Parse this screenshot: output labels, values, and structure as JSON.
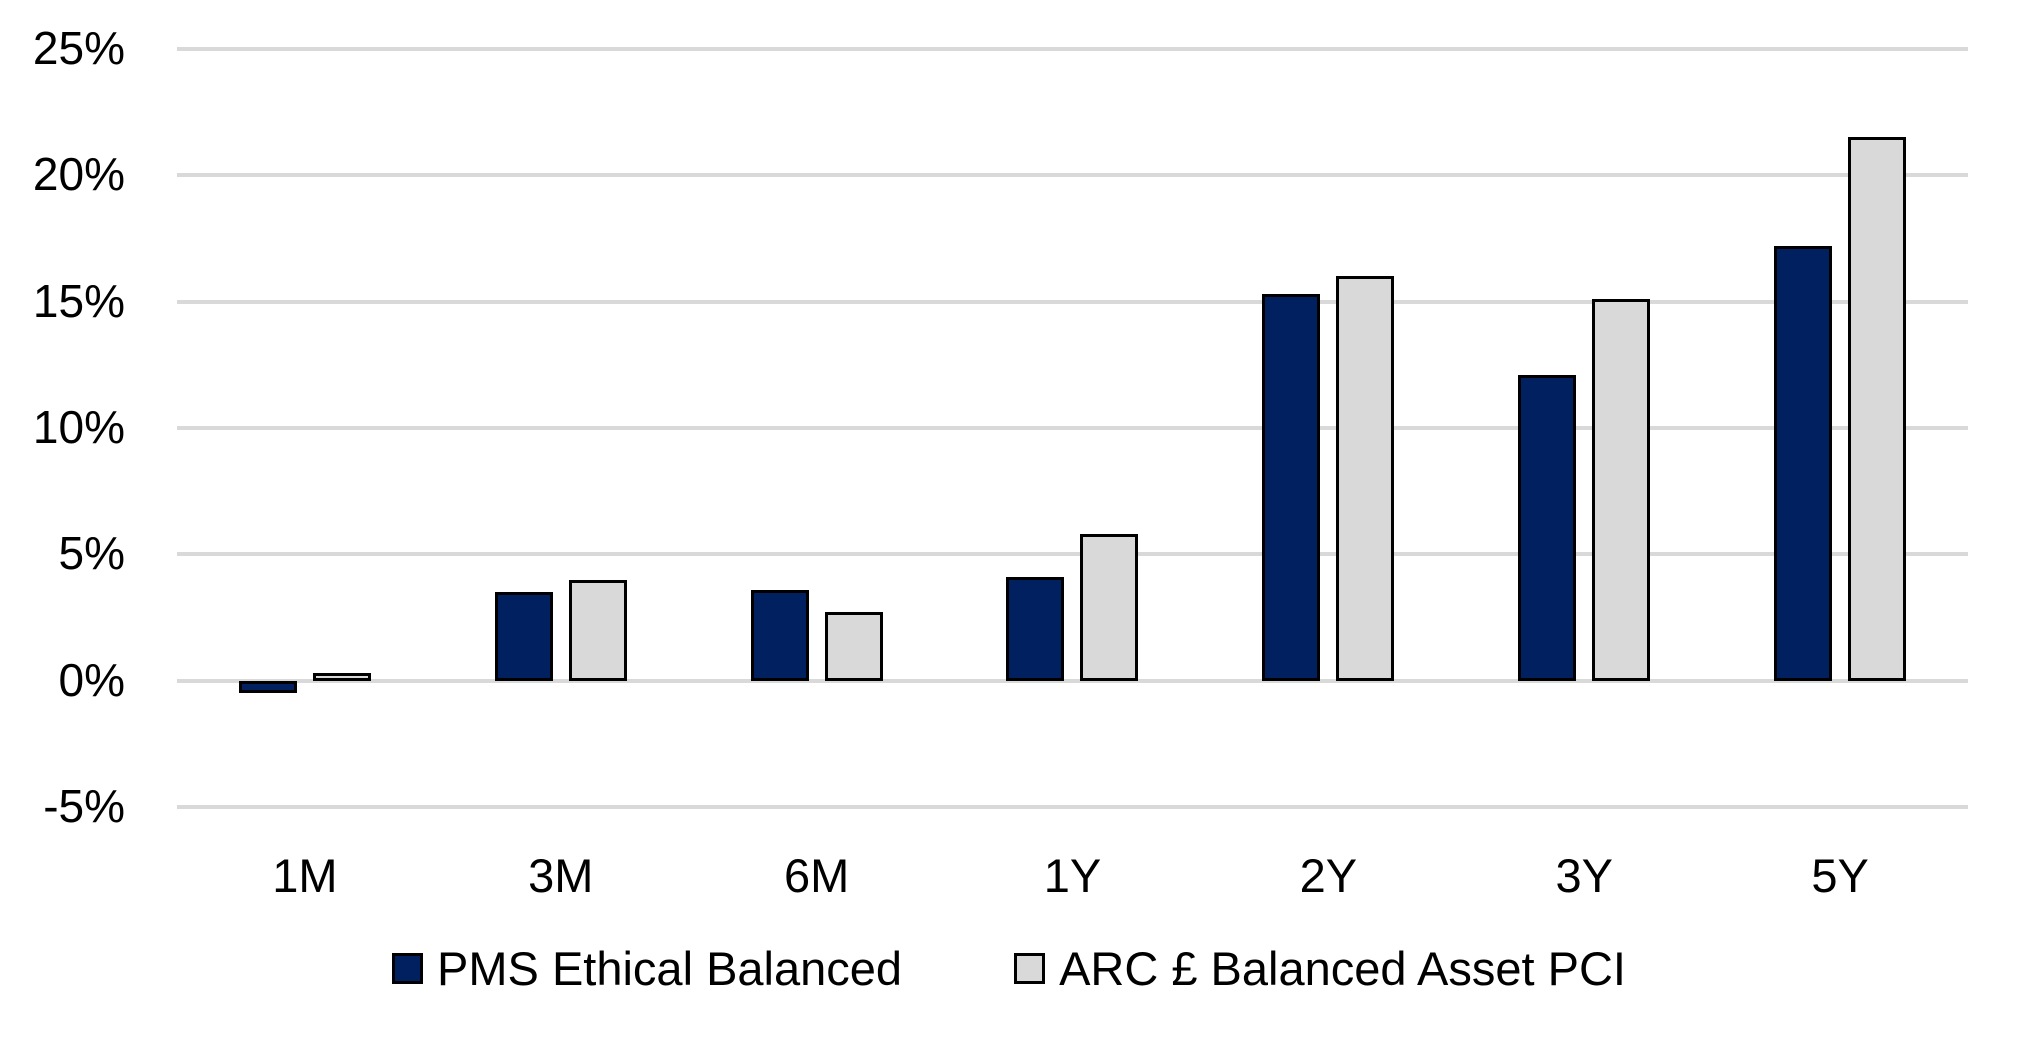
{
  "chart_data": {
    "type": "bar",
    "categories": [
      "1M",
      "3M",
      "6M",
      "1Y",
      "2Y",
      "3Y",
      "5Y"
    ],
    "series": [
      {
        "name": "PMS Ethical Balanced",
        "color": "#002060",
        "values": [
          -0.5,
          3.5,
          3.6,
          4.1,
          15.3,
          12.1,
          17.2
        ]
      },
      {
        "name": "ARC £ Balanced Asset PCI",
        "color": "#d9d9d9",
        "values": [
          0.3,
          4.0,
          2.7,
          5.8,
          16.0,
          15.1,
          21.5
        ]
      }
    ],
    "ylim": [
      -5,
      25
    ],
    "ytick_step": 5,
    "ytick_labels_top_to_bottom": [
      "25%",
      "20%",
      "15%",
      "10%",
      "5%",
      "0%",
      "-5%"
    ],
    "grid": true,
    "legend_position": "bottom",
    "colors": {
      "bar_border": "#000000",
      "gridline": "#d9d9d9",
      "text": "#000000",
      "background": "#ffffff"
    }
  }
}
